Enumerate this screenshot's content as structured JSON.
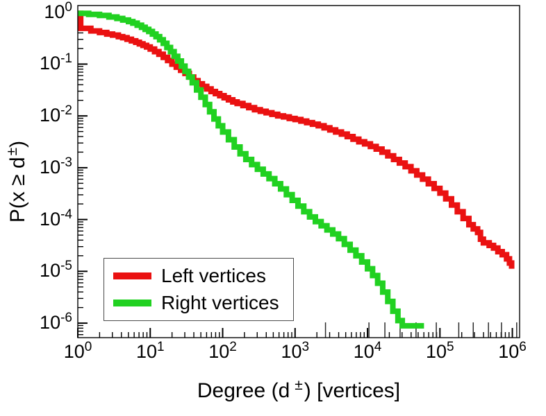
{
  "chart_data": {
    "type": "line",
    "subtype": "ccdf-staircase-loglog",
    "title": "",
    "xlabel": {
      "prefix": "Degree (d",
      "sup": "±",
      "suffix": ") [vertices]"
    },
    "ylabel": {
      "prefix": "P(x ≥ d",
      "sup": "±",
      "suffix": ")"
    },
    "x_scale": "log",
    "y_scale": "log",
    "xlim_log10": [
      0,
      6.1
    ],
    "ylim_log10": [
      -6.28,
      0.13
    ],
    "tick_base": "10",
    "x_major_ticks_exp": [
      0,
      1,
      2,
      3,
      4,
      5,
      6
    ],
    "y_major_ticks_exp": [
      0,
      -1,
      -2,
      -3,
      -4,
      -5,
      -6
    ],
    "grid": false,
    "background": "#ffffff",
    "axis_color": "#000000",
    "legend": {
      "position": "lower-left",
      "items": [
        {
          "label": "Left vertices",
          "color": "#ea1111"
        },
        {
          "label": "Right vertices",
          "color": "#21d121"
        }
      ]
    },
    "series": [
      {
        "name": "Left vertices",
        "color": "#ea1111",
        "stroke_width": 8,
        "points_log10": [
          [
            0.0,
            -0.02
          ],
          [
            0.04,
            -0.31
          ],
          [
            0.18,
            -0.36
          ],
          [
            0.3,
            -0.39
          ],
          [
            0.4,
            -0.42
          ],
          [
            0.48,
            -0.44
          ],
          [
            0.56,
            -0.47
          ],
          [
            0.62,
            -0.49
          ],
          [
            0.68,
            -0.52
          ],
          [
            0.74,
            -0.55
          ],
          [
            0.8,
            -0.58
          ],
          [
            0.85,
            -0.61
          ],
          [
            0.9,
            -0.64
          ],
          [
            0.95,
            -0.67
          ],
          [
            1.0,
            -0.71
          ],
          [
            1.06,
            -0.76
          ],
          [
            1.12,
            -0.81
          ],
          [
            1.18,
            -0.87
          ],
          [
            1.24,
            -0.93
          ],
          [
            1.3,
            -1.0
          ],
          [
            1.36,
            -1.06
          ],
          [
            1.42,
            -1.12
          ],
          [
            1.48,
            -1.18
          ],
          [
            1.54,
            -1.25
          ],
          [
            1.6,
            -1.32
          ],
          [
            1.66,
            -1.38
          ],
          [
            1.72,
            -1.43
          ],
          [
            1.78,
            -1.48
          ],
          [
            1.84,
            -1.53
          ],
          [
            1.9,
            -1.57
          ],
          [
            1.96,
            -1.61
          ],
          [
            2.02,
            -1.65
          ],
          [
            2.08,
            -1.69
          ],
          [
            2.14,
            -1.73
          ],
          [
            2.2,
            -1.76
          ],
          [
            2.28,
            -1.8
          ],
          [
            2.36,
            -1.84
          ],
          [
            2.44,
            -1.88
          ],
          [
            2.52,
            -1.91
          ],
          [
            2.6,
            -1.94
          ],
          [
            2.68,
            -1.97
          ],
          [
            2.76,
            -2.0
          ],
          [
            2.84,
            -2.02
          ],
          [
            2.92,
            -2.05
          ],
          [
            3.0,
            -2.07
          ],
          [
            3.08,
            -2.1
          ],
          [
            3.16,
            -2.13
          ],
          [
            3.24,
            -2.16
          ],
          [
            3.32,
            -2.19
          ],
          [
            3.4,
            -2.23
          ],
          [
            3.48,
            -2.27
          ],
          [
            3.56,
            -2.31
          ],
          [
            3.64,
            -2.35
          ],
          [
            3.72,
            -2.4
          ],
          [
            3.8,
            -2.45
          ],
          [
            3.88,
            -2.5
          ],
          [
            3.96,
            -2.54
          ],
          [
            4.04,
            -2.59
          ],
          [
            4.12,
            -2.64
          ],
          [
            4.2,
            -2.7
          ],
          [
            4.28,
            -2.77
          ],
          [
            4.36,
            -2.84
          ],
          [
            4.44,
            -2.91
          ],
          [
            4.52,
            -2.98
          ],
          [
            4.6,
            -3.06
          ],
          [
            4.68,
            -3.14
          ],
          [
            4.76,
            -3.22
          ],
          [
            4.84,
            -3.31
          ],
          [
            4.92,
            -3.4
          ],
          [
            5.0,
            -3.49
          ],
          [
            5.08,
            -3.6
          ],
          [
            5.16,
            -3.72
          ],
          [
            5.24,
            -3.85
          ],
          [
            5.32,
            -3.98
          ],
          [
            5.4,
            -4.1
          ],
          [
            5.46,
            -4.18
          ],
          [
            5.52,
            -4.25
          ],
          [
            5.56,
            -4.38
          ],
          [
            5.6,
            -4.45
          ],
          [
            5.68,
            -4.5
          ],
          [
            5.74,
            -4.55
          ],
          [
            5.8,
            -4.62
          ],
          [
            5.86,
            -4.68
          ],
          [
            5.92,
            -4.76
          ],
          [
            5.96,
            -4.84
          ],
          [
            5.99,
            -4.95
          ]
        ]
      },
      {
        "name": "Right vertices",
        "color": "#21d121",
        "stroke_width": 8,
        "points_log10": [
          [
            0.0,
            -0.02
          ],
          [
            0.15,
            -0.04
          ],
          [
            0.3,
            -0.06
          ],
          [
            0.43,
            -0.09
          ],
          [
            0.54,
            -0.12
          ],
          [
            0.62,
            -0.15
          ],
          [
            0.7,
            -0.18
          ],
          [
            0.76,
            -0.21
          ],
          [
            0.82,
            -0.25
          ],
          [
            0.88,
            -0.29
          ],
          [
            0.93,
            -0.33
          ],
          [
            0.98,
            -0.37
          ],
          [
            1.03,
            -0.42
          ],
          [
            1.08,
            -0.47
          ],
          [
            1.13,
            -0.53
          ],
          [
            1.18,
            -0.6
          ],
          [
            1.23,
            -0.68
          ],
          [
            1.28,
            -0.76
          ],
          [
            1.33,
            -0.85
          ],
          [
            1.38,
            -0.94
          ],
          [
            1.43,
            -1.04
          ],
          [
            1.48,
            -1.14
          ],
          [
            1.53,
            -1.25
          ],
          [
            1.58,
            -1.36
          ],
          [
            1.64,
            -1.5
          ],
          [
            1.7,
            -1.64
          ],
          [
            1.76,
            -1.78
          ],
          [
            1.82,
            -1.92
          ],
          [
            1.88,
            -2.06
          ],
          [
            1.94,
            -2.19
          ],
          [
            2.0,
            -2.31
          ],
          [
            2.08,
            -2.46
          ],
          [
            2.16,
            -2.6
          ],
          [
            2.24,
            -2.73
          ],
          [
            2.32,
            -2.84
          ],
          [
            2.4,
            -2.94
          ],
          [
            2.48,
            -3.03
          ],
          [
            2.56,
            -3.12
          ],
          [
            2.64,
            -3.21
          ],
          [
            2.72,
            -3.31
          ],
          [
            2.8,
            -3.41
          ],
          [
            2.88,
            -3.52
          ],
          [
            2.96,
            -3.63
          ],
          [
            3.04,
            -3.74
          ],
          [
            3.12,
            -3.85
          ],
          [
            3.2,
            -3.95
          ],
          [
            3.28,
            -4.04
          ],
          [
            3.36,
            -4.12
          ],
          [
            3.44,
            -4.2
          ],
          [
            3.52,
            -4.28
          ],
          [
            3.6,
            -4.37
          ],
          [
            3.68,
            -4.48
          ],
          [
            3.76,
            -4.59
          ],
          [
            3.84,
            -4.7
          ],
          [
            3.92,
            -4.82
          ],
          [
            4.0,
            -4.95
          ],
          [
            4.07,
            -5.08
          ],
          [
            4.14,
            -5.23
          ],
          [
            4.21,
            -5.4
          ],
          [
            4.28,
            -5.58
          ],
          [
            4.35,
            -5.77
          ],
          [
            4.42,
            -5.95
          ],
          [
            4.48,
            -6.05
          ],
          [
            4.78,
            -6.05
          ]
        ]
      }
    ],
    "floor_marks_log10x": [
      3.42,
      4.02,
      4.24,
      4.45,
      4.67,
      4.95,
      5.26,
      5.46,
      5.67,
      5.85,
      6.06
    ]
  }
}
